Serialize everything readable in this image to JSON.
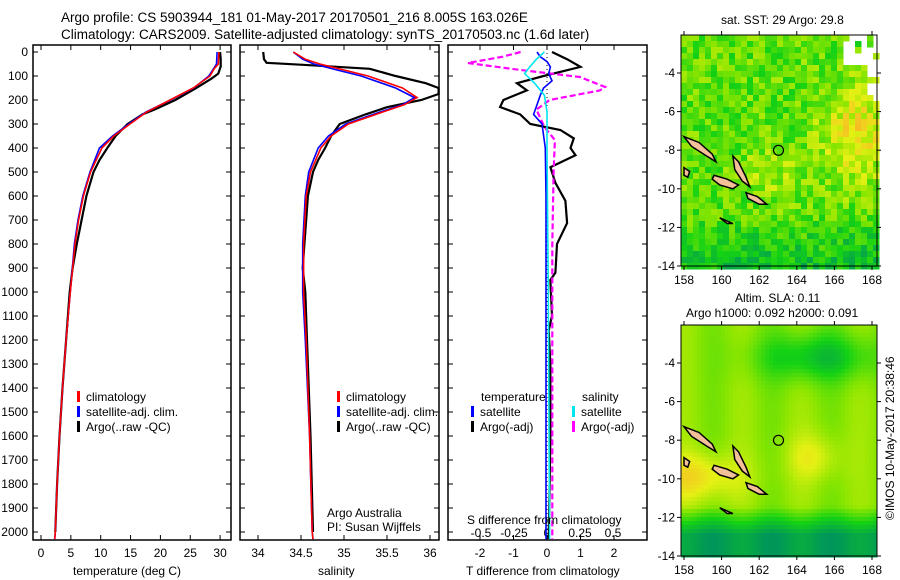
{
  "header": {
    "line1": "Argo profile: CS 5903944_181 01-May-2017 20170501_216 8.005S 163.026E",
    "line2": "Climatology: CARS2009. Satellite-adjusted climatology: synTS_20170503.nc (1.6d later)"
  },
  "credit": "©IMOS 10-May-2017 20:38:46",
  "attribution": {
    "line1": "Argo Australia",
    "line2": "PI: Susan Wijffels"
  },
  "colors": {
    "climatology": "#ff0000",
    "satellite": "#0000ff",
    "argo": "#000000",
    "sal_satellite": "#00e5ee",
    "sal_argo": "#ff00ff"
  },
  "chart_data": [
    {
      "type": "line",
      "name": "temperature",
      "xlabel": "temperature (deg C)",
      "ylabel": "depth",
      "xlim": [
        -1.5,
        31.5
      ],
      "ylim": [
        2030,
        0
      ],
      "xticks": [
        "0",
        "5",
        "10",
        "15",
        "20",
        "25",
        "30"
      ],
      "xtick_values": [
        0,
        5,
        10,
        15,
        20,
        25,
        30
      ],
      "yticks": [
        "0",
        "100",
        "200",
        "300",
        "400",
        "500",
        "600",
        "700",
        "800",
        "900",
        "1000",
        "1100",
        "1200",
        "1300",
        "1400",
        "1500",
        "1600",
        "1700",
        "1800",
        "1900",
        "2000"
      ],
      "legend": [
        "climatology",
        "satellite-adj. clim.",
        "Argo(..raw -QC)"
      ],
      "series": [
        {
          "name": "climatology",
          "color": "#ff0000",
          "depth": [
            0,
            50,
            70,
            100,
            150,
            200,
            250,
            300,
            350,
            400,
            500,
            600,
            700,
            800,
            1000,
            1200,
            1400,
            1600,
            1800,
            2000,
            2030
          ],
          "values": [
            29.8,
            29.7,
            29.0,
            28.3,
            25.5,
            21.6,
            17.7,
            14.9,
            12.2,
            10.2,
            8.3,
            7.1,
            6.3,
            5.7,
            4.9,
            4.2,
            3.6,
            3.1,
            2.7,
            2.4,
            2.3
          ]
        },
        {
          "name": "satellite-adj. clim.",
          "color": "#0000ff",
          "depth": [
            0,
            50,
            70,
            100,
            150,
            200,
            250,
            300,
            350,
            400,
            500,
            600,
            700,
            800,
            1000,
            1200,
            1400,
            1600,
            1800,
            2000,
            2030
          ],
          "values": [
            29.5,
            29.4,
            28.9,
            28.1,
            25.6,
            21.7,
            17.6,
            14.7,
            12.0,
            9.8,
            8.2,
            7.0,
            6.2,
            5.6,
            4.9,
            4.2,
            3.6,
            3.1,
            2.7,
            2.4,
            2.3
          ]
        },
        {
          "name": "Argo",
          "color": "#000000",
          "depth": [
            0,
            30,
            60,
            90,
            110,
            150,
            200,
            240,
            260,
            300,
            350,
            400,
            450,
            500,
            600,
            700,
            800,
            900,
            1000,
            1200,
            1400,
            1600,
            1800,
            2000
          ],
          "values": [
            30.0,
            30.1,
            30.1,
            29.7,
            28.6,
            26.0,
            22.5,
            19.0,
            17.0,
            14.5,
            12.5,
            11.1,
            9.8,
            8.8,
            7.6,
            6.8,
            6.0,
            5.3,
            4.8,
            4.2,
            3.6,
            3.1,
            2.7,
            2.4
          ]
        }
      ]
    },
    {
      "type": "line",
      "name": "salinity",
      "xlabel": "salinity",
      "xlim": [
        33.8,
        36.1
      ],
      "ylim": [
        2030,
        0
      ],
      "xticks": [
        "34",
        "34.5",
        "35",
        "35.5",
        "36"
      ],
      "xtick_values": [
        34,
        34.5,
        35,
        35.5,
        36
      ],
      "legend": [
        "climatology",
        "satellite-adj. clim.",
        "Argo(..raw -QC)"
      ],
      "series": [
        {
          "name": "climatology",
          "color": "#ff0000",
          "depth": [
            0,
            30,
            50,
            75,
            100,
            150,
            190,
            220,
            250,
            300,
            350,
            400,
            500,
            600,
            800,
            1000,
            1200,
            1600,
            2000,
            2030
          ],
          "values": [
            34.41,
            34.55,
            34.72,
            35.0,
            35.28,
            35.68,
            35.85,
            35.7,
            35.45,
            35.05,
            34.85,
            34.73,
            34.61,
            34.56,
            34.53,
            34.53,
            34.56,
            34.6,
            34.63,
            34.64
          ]
        },
        {
          "name": "satellite-adj. clim.",
          "color": "#0000ff",
          "depth": [
            0,
            30,
            50,
            75,
            100,
            150,
            190,
            220,
            250,
            300,
            350,
            400,
            500,
            600,
            800,
            1000,
            1200,
            1600,
            2000,
            2030
          ],
          "values": [
            34.41,
            34.52,
            34.65,
            34.92,
            35.2,
            35.6,
            35.82,
            35.68,
            35.42,
            35.02,
            34.82,
            34.7,
            34.59,
            34.55,
            34.52,
            34.52,
            34.55,
            34.6,
            34.63,
            34.64
          ]
        },
        {
          "name": "Argo",
          "color": "#000000",
          "depth": [
            0,
            30,
            45,
            55,
            70,
            100,
            130,
            150,
            175,
            200,
            230,
            260,
            300,
            350,
            400,
            450,
            500,
            600,
            800,
            900,
            1000,
            1200,
            1600,
            2000
          ],
          "values": [
            34.06,
            34.07,
            34.1,
            34.6,
            35.3,
            35.6,
            35.95,
            36.1,
            36.1,
            35.9,
            35.5,
            35.25,
            34.95,
            34.85,
            34.78,
            34.7,
            34.64,
            34.58,
            34.54,
            34.52,
            34.55,
            34.57,
            34.61,
            34.64
          ]
        }
      ]
    },
    {
      "type": "line",
      "name": "difference",
      "xlabel": "T difference from climatology",
      "x2label": "S difference from climatology",
      "xlim": [
        -2.95,
        3.0
      ],
      "x2lim": [
        -0.75,
        0.75
      ],
      "ylim": [
        2030,
        0
      ],
      "xticks": [
        "-2",
        "-1",
        "0",
        "1",
        "2"
      ],
      "xtick_values": [
        -2,
        -1,
        0,
        1,
        2
      ],
      "x2ticks": [
        "-0.5",
        "-0.25",
        "0",
        "0.25",
        "0.5"
      ],
      "x2tick_values": [
        -0.5,
        -0.25,
        0,
        0.25,
        0.5
      ],
      "legend": {
        "temperature": "temperature",
        "salinity": "salinity",
        "satellite": "satellite",
        "argo": "Argo(-adj)"
      },
      "series": [
        {
          "name": "temperature satellite",
          "color": "#0000ff",
          "axis": "T",
          "depth": [
            0,
            20,
            40,
            62,
            90,
            120,
            150,
            180,
            220,
            260,
            300,
            400,
            600,
            1000,
            1500,
            2030
          ],
          "values": [
            -0.3,
            -0.2,
            0.0,
            0.1,
            0.05,
            0.15,
            -0.1,
            -0.2,
            -0.3,
            -0.4,
            -0.15,
            -0.05,
            -0.03,
            -0.03,
            -0.03,
            -0.03
          ]
        },
        {
          "name": "temperature Argo",
          "color": "#000000",
          "axis": "T",
          "depth": [
            0,
            30,
            62,
            100,
            130,
            160,
            200,
            229,
            260,
            300,
            325,
            360,
            400,
            430,
            480,
            545,
            620,
            713,
            800,
            920,
            950,
            1100,
            1160,
            1300,
            1600,
            2030
          ],
          "values": [
            0.15,
            0.6,
            1.0,
            -0.1,
            -0.9,
            -0.6,
            -1.3,
            -1.4,
            -0.8,
            -0.5,
            0.4,
            0.8,
            0.7,
            0.85,
            0.1,
            0.25,
            0.55,
            0.6,
            0.3,
            0.25,
            0.1,
            0.15,
            0.05,
            0.1,
            0.1,
            0.05
          ]
        },
        {
          "name": "salinity satellite",
          "color": "#00e5ee",
          "axis": "S",
          "depth": [
            0,
            30,
            62,
            90,
            132,
            180,
            250,
            400,
            1000,
            2030
          ],
          "values": [
            -0.02,
            -0.08,
            -0.13,
            -0.17,
            -0.09,
            -0.02,
            0.0,
            0.0,
            0.01,
            0.02
          ]
        },
        {
          "name": "salinity Argo",
          "color": "#ff00ff",
          "axis": "S",
          "depth": [
            0,
            20,
            46,
            75,
            104,
            146,
            160,
            200,
            240,
            312,
            367,
            500,
            800,
            1200,
            2030
          ],
          "values": [
            -0.2,
            -0.34,
            -0.6,
            -0.2,
            0.25,
            0.44,
            0.4,
            0.02,
            -0.08,
            -0.02,
            0.06,
            0.05,
            0.04,
            0.04,
            0.04
          ]
        }
      ]
    },
    {
      "type": "heatmap",
      "name": "satellite SST map",
      "title": "sat. SST: 29 Argo: 29.8",
      "xlim": [
        158,
        168.2
      ],
      "ylim": [
        -14,
        -2
      ],
      "xticks": [
        "158",
        "160",
        "162",
        "164",
        "166",
        "168"
      ],
      "yticks": [
        "-4",
        "-6",
        "-8",
        "-10",
        "-12",
        "-14"
      ],
      "marker": {
        "lon": 163.026,
        "lat": -8.005
      }
    },
    {
      "type": "heatmap",
      "name": "altimetry SLA map",
      "title": "Altim. SLA: 0.11",
      "subtitle": "Argo h1000: 0.092 h2000: 0.091",
      "xlim": [
        158,
        168.2
      ],
      "ylim": [
        -14,
        -2
      ],
      "xticks": [
        "158",
        "160",
        "162",
        "164",
        "166",
        "168"
      ],
      "yticks": [
        "-4",
        "-6",
        "-8",
        "-10",
        "-12",
        "-14"
      ],
      "marker": {
        "lon": 163.026,
        "lat": -8.005
      }
    }
  ]
}
